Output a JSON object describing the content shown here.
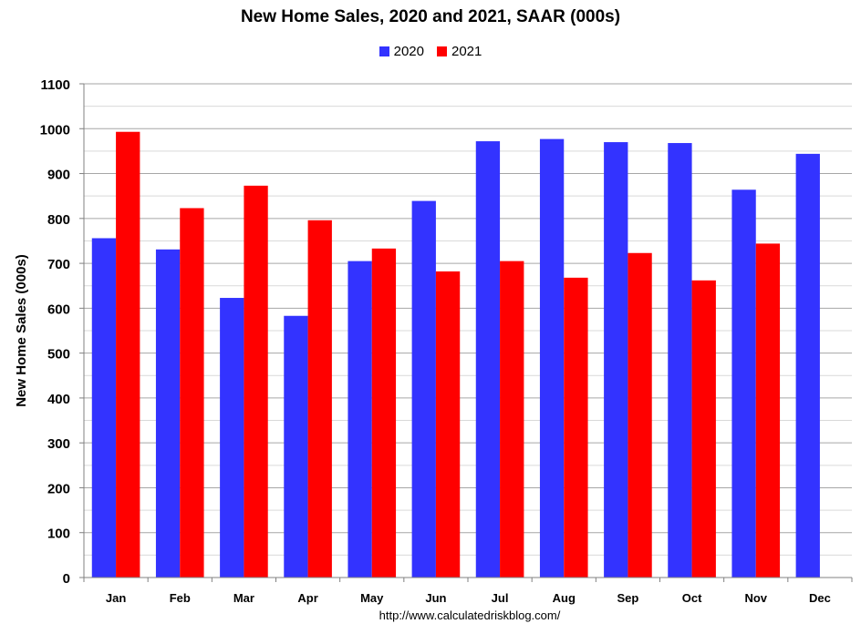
{
  "chart_data": {
    "type": "bar",
    "title": "New Home Sales,  2020 and 2021, SAAR (000s)",
    "xlabel": "",
    "ylabel": "New Home Sales (000s)",
    "ylim": [
      0,
      1100
    ],
    "yticks": [
      0,
      100,
      200,
      300,
      400,
      500,
      600,
      700,
      800,
      900,
      1000,
      1100
    ],
    "grid": true,
    "legend_position": "top-center",
    "categories": [
      "Jan",
      "Feb",
      "Mar",
      "Apr",
      "May",
      "Jun",
      "Jul",
      "Aug",
      "Sep",
      "Oct",
      "Nov",
      "Dec"
    ],
    "series": [
      {
        "name": "2020",
        "color": "#3333ff",
        "values": [
          756,
          731,
          623,
          583,
          705,
          839,
          972,
          977,
          970,
          968,
          864,
          944
        ]
      },
      {
        "name": "2021",
        "color": "#ff0000",
        "values": [
          993,
          823,
          873,
          796,
          733,
          682,
          705,
          668,
          723,
          662,
          744,
          null
        ]
      }
    ]
  },
  "source": "http://www.calculatedriskblog.com/"
}
